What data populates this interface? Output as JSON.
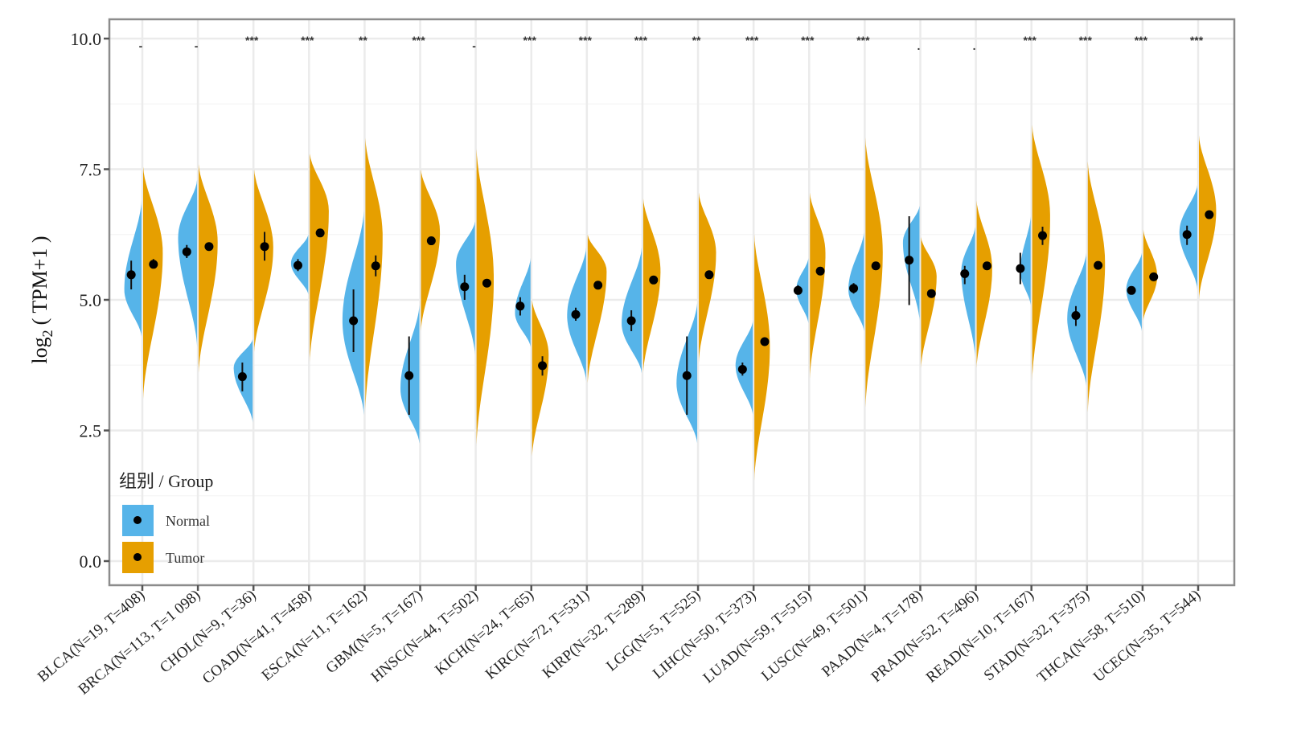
{
  "chart_data": {
    "type": "violin",
    "title": "",
    "xlabel": "",
    "ylabel": "log2 ( TPM+1 )",
    "ylabel_parts": {
      "base": "log",
      "subscript": "2",
      "rest": "( TPM+1 )"
    },
    "ylim": [
      -0.45,
      10.35
    ],
    "yticks": [
      0.0,
      2.5,
      5.0,
      7.5,
      10.0
    ],
    "ytick_labels": [
      "0.0",
      "2.5",
      "5.0",
      "7.5",
      "10.0"
    ],
    "grid": true,
    "legend": {
      "title": "组别 / Group",
      "position": "bottom-left",
      "entries": [
        {
          "name": "Normal",
          "color": "#56B4E9"
        },
        {
          "name": "Tumor",
          "color": "#E69F00"
        }
      ]
    },
    "categories": [
      "BLCA(N=19, T=408)",
      "BRCA(N=113, T=1 098)",
      "CHOL(N=9, T=36)",
      "COAD(N=41, T=458)",
      "ESCA(N=11, T=162)",
      "GBM(N=5, T=167)",
      "HNSC(N=44, T=502)",
      "KICH(N=24, T=65)",
      "KIRC(N=72, T=531)",
      "KIRP(N=32, T=289)",
      "LGG(N=5, T=525)",
      "LIHC(N=50, T=373)",
      "LUAD(N=59, T=515)",
      "LUSC(N=49, T=501)",
      "PAAD(N=4, T=178)",
      "PRAD(N=52, T=496)",
      "READ(N=10, T=167)",
      "STAD(N=32, T=375)",
      "THCA(N=58, T=510)",
      "UCEC(N=35, T=544)"
    ],
    "significance": [
      "-",
      "-",
      "***",
      "***",
      "**",
      "***",
      "-",
      "***",
      "***",
      "***",
      "**",
      "***",
      "***",
      "***",
      ".",
      ".",
      "***",
      "***",
      "***",
      "***"
    ],
    "series": [
      {
        "name": "Normal",
        "color": "#56B4E9",
        "median": [
          5.48,
          5.92,
          3.53,
          5.66,
          4.6,
          3.55,
          5.25,
          4.88,
          4.72,
          4.6,
          3.55,
          3.67,
          5.18,
          5.22,
          5.76,
          5.5,
          5.6,
          4.7,
          5.18,
          6.25
        ],
        "ci_low": [
          5.2,
          5.8,
          3.25,
          5.55,
          4.0,
          2.8,
          5.0,
          4.7,
          4.6,
          4.4,
          2.8,
          3.55,
          5.1,
          5.12,
          4.9,
          5.3,
          5.3,
          4.5,
          5.1,
          6.05
        ],
        "ci_high": [
          5.75,
          6.05,
          3.8,
          5.78,
          5.2,
          4.3,
          5.48,
          5.05,
          4.85,
          4.8,
          4.3,
          3.8,
          5.28,
          5.32,
          6.6,
          5.65,
          5.9,
          4.88,
          5.26,
          6.42
        ],
        "violin_min": [
          4.3,
          4.1,
          2.65,
          5.1,
          2.8,
          2.25,
          3.95,
          4.1,
          3.45,
          3.6,
          2.25,
          2.8,
          4.55,
          4.4,
          4.6,
          3.9,
          4.9,
          3.35,
          4.4,
          5.2
        ],
        "violin_max": [
          6.9,
          7.3,
          4.25,
          6.25,
          6.7,
          4.9,
          6.5,
          5.8,
          6.0,
          6.0,
          4.95,
          4.6,
          5.8,
          6.3,
          6.8,
          6.4,
          6.6,
          5.9,
          5.9,
          7.2
        ],
        "violin_mode": [
          5.2,
          6.2,
          3.7,
          5.7,
          4.6,
          3.3,
          5.7,
          4.75,
          4.7,
          4.55,
          3.4,
          3.75,
          5.2,
          5.2,
          6.1,
          5.55,
          5.55,
          4.65,
          5.2,
          6.3
        ],
        "violin_halfwidth": [
          0.5,
          0.55,
          0.55,
          0.5,
          0.62,
          0.55,
          0.55,
          0.45,
          0.55,
          0.58,
          0.6,
          0.5,
          0.35,
          0.45,
          0.48,
          0.4,
          0.3,
          0.55,
          0.45,
          0.52
        ]
      },
      {
        "name": "Tumor",
        "color": "#E69F00",
        "median": [
          5.68,
          6.02,
          6.02,
          6.28,
          5.65,
          6.13,
          5.32,
          3.74,
          5.28,
          5.38,
          5.48,
          4.2,
          5.55,
          5.65,
          5.12,
          5.65,
          6.23,
          5.66,
          5.44,
          6.63
        ],
        "ci_low": [
          5.6,
          5.95,
          5.75,
          6.2,
          5.45,
          6.05,
          5.25,
          3.55,
          5.22,
          5.32,
          5.42,
          4.12,
          5.5,
          5.58,
          5.05,
          5.6,
          6.05,
          5.6,
          5.38,
          6.58
        ],
        "ci_high": [
          5.78,
          6.08,
          6.3,
          6.35,
          5.85,
          6.2,
          5.4,
          3.92,
          5.34,
          5.44,
          5.54,
          4.28,
          5.6,
          5.72,
          5.2,
          5.7,
          6.4,
          5.72,
          5.5,
          6.68
        ],
        "violin_min": [
          3.1,
          3.6,
          4.0,
          3.8,
          2.9,
          4.4,
          2.2,
          2.0,
          3.4,
          3.6,
          3.8,
          1.55,
          3.5,
          2.95,
          3.7,
          3.7,
          3.45,
          2.85,
          4.6,
          5.0
        ],
        "violin_max": [
          7.55,
          7.6,
          7.5,
          7.8,
          8.1,
          7.5,
          7.9,
          5.0,
          6.25,
          6.95,
          7.05,
          6.25,
          7.05,
          8.1,
          6.2,
          6.9,
          8.35,
          7.65,
          6.35,
          8.15
        ],
        "violin_mode": [
          5.9,
          6.1,
          6.0,
          6.7,
          6.2,
          6.3,
          5.4,
          3.95,
          5.55,
          5.55,
          5.9,
          4.1,
          5.9,
          5.9,
          5.45,
          5.6,
          6.6,
          5.7,
          5.45,
          6.7
        ],
        "violin_halfwidth": [
          0.57,
          0.55,
          0.55,
          0.55,
          0.5,
          0.55,
          0.5,
          0.48,
          0.55,
          0.5,
          0.5,
          0.45,
          0.45,
          0.5,
          0.45,
          0.45,
          0.52,
          0.5,
          0.4,
          0.5
        ]
      }
    ]
  }
}
